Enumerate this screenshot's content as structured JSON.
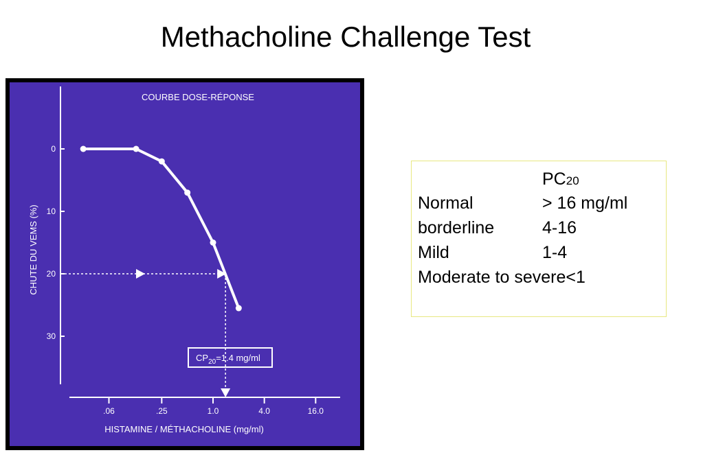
{
  "slide": {
    "title": "Methacholine Challenge Test"
  },
  "colors": {
    "panel": "#4a2fb0",
    "frame": "#000000",
    "ink": "#ffffff",
    "legend_border": "#e8e880"
  },
  "chart_data": {
    "type": "line",
    "title": "COURBE DOSE-RÉPONSE",
    "xlabel": "HISTAMINE / MÉTHACHOLINE (mg/ml)",
    "ylabel": "CHUTE DU VEMS (%)",
    "x_ticks": [
      ".06",
      ".25",
      "1.0",
      "4.0",
      "16.0"
    ],
    "x_tick_values": [
      0.06,
      0.25,
      1.0,
      4.0,
      16.0
    ],
    "x_scale": "log",
    "y_ticks": [
      "0",
      "10",
      "20",
      "30"
    ],
    "y_tick_values": [
      0,
      10,
      20,
      30
    ],
    "y_inverted": true,
    "ylim": [
      0,
      37
    ],
    "grid": false,
    "series": [
      {
        "x": [
          0.03,
          0.125,
          0.25,
          0.5,
          1.0,
          2.0
        ],
        "y": [
          0,
          0,
          2,
          7,
          15,
          25.5
        ]
      }
    ],
    "threshold": {
      "y": 20,
      "x": 1.4
    },
    "annotation": {
      "prefix": "CP",
      "sub": "20",
      "rest": "=1.4 mg/ml"
    }
  },
  "pc20_table": {
    "header": "PC",
    "header_sub": "20",
    "rows": [
      {
        "label": "Normal",
        "value": "> 16 mg/ml"
      },
      {
        "label": "borderline",
        "value": "4-16"
      },
      {
        "label": "Mild",
        "value": "1-4"
      },
      {
        "label": "Moderate to severe",
        "value": "<1"
      }
    ]
  }
}
